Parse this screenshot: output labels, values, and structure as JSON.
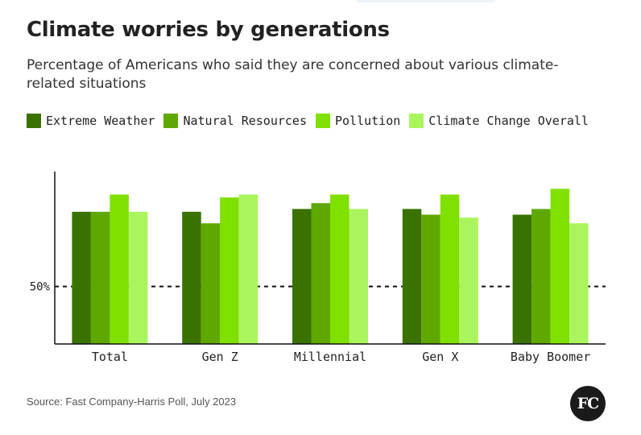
{
  "header": {
    "title": "Climate worries by generations",
    "subtitle": "Percentage of Americans who said they are concerned about various climate-related situations"
  },
  "legend": [
    {
      "label": "Extreme Weather",
      "color": "#3a7200"
    },
    {
      "label": "Natural Resources",
      "color": "#5fa800"
    },
    {
      "label": "Pollution",
      "color": "#80e000"
    },
    {
      "label": "Climate Change Overall",
      "color": "#aaf55e"
    }
  ],
  "chart_data": {
    "type": "bar",
    "categories": [
      "Total",
      "Gen Z",
      "Millennial",
      "Gen X",
      "Baby Boomer"
    ],
    "series": [
      {
        "name": "Extreme Weather",
        "color": "#3a7200",
        "values": [
          76,
          76,
          77,
          77,
          75
        ]
      },
      {
        "name": "Natural Resources",
        "color": "#5fa800",
        "values": [
          76,
          72,
          79,
          75,
          77
        ]
      },
      {
        "name": "Pollution",
        "color": "#80e000",
        "values": [
          82,
          81,
          82,
          82,
          84
        ]
      },
      {
        "name": "Climate Change Overall",
        "color": "#aaf55e",
        "values": [
          76,
          82,
          77,
          74,
          72
        ]
      }
    ],
    "title": "Climate worries by generations",
    "ylim": [
      30,
      90
    ],
    "reference_line": {
      "value": 50,
      "label": "50%",
      "style": "dashed"
    },
    "legend_position": "top",
    "grid": false
  },
  "footer": {
    "source": "Source: Fast Company-Harris Poll, July 2023",
    "logo_text": "FC"
  }
}
